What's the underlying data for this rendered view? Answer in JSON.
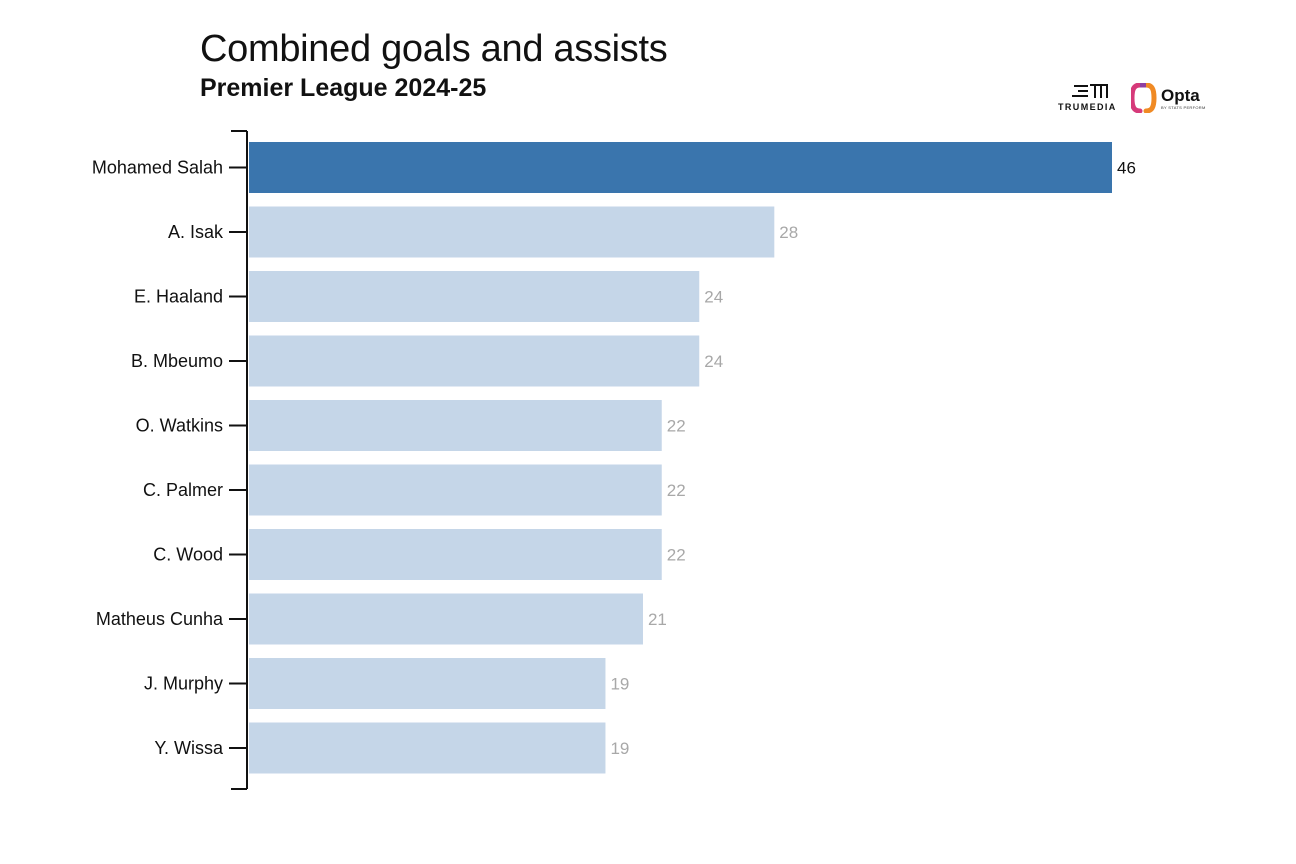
{
  "title": "Combined goals and assists",
  "subtitle": "Premier League 2024-25",
  "logos": {
    "trumedia": {
      "text": "TRUMEDIA",
      "icon": "trumedia-logo-icon"
    },
    "opta": {
      "text": "Opta",
      "tagline": "BY STATS PERFORM",
      "icon": "opta-logo-icon"
    }
  },
  "colors": {
    "highlight": "#3a75ad",
    "bar": "#c5d6e8",
    "highlight_label": "#111111",
    "label": "#a8a8a8",
    "axis": "#111111"
  },
  "chart_data": {
    "type": "bar",
    "orientation": "horizontal",
    "categories": [
      "Mohamed Salah",
      "A. Isak",
      "E. Haaland",
      "B. Mbeumo",
      "O. Watkins",
      "C. Palmer",
      "C. Wood",
      "Matheus Cunha",
      "J. Murphy",
      "Y. Wissa"
    ],
    "values": [
      46,
      28,
      24,
      24,
      22,
      22,
      22,
      21,
      19,
      19
    ],
    "value_labels": [
      "46",
      "28",
      "24",
      "24",
      "22",
      "22",
      "22",
      "21",
      "19",
      "19"
    ],
    "highlighted_category": "Mohamed Salah",
    "title": "Combined goals and assists",
    "subtitle": "Premier League 2024-25",
    "xlim": [
      0,
      46
    ],
    "grid": false,
    "x_axis_visible": false
  }
}
